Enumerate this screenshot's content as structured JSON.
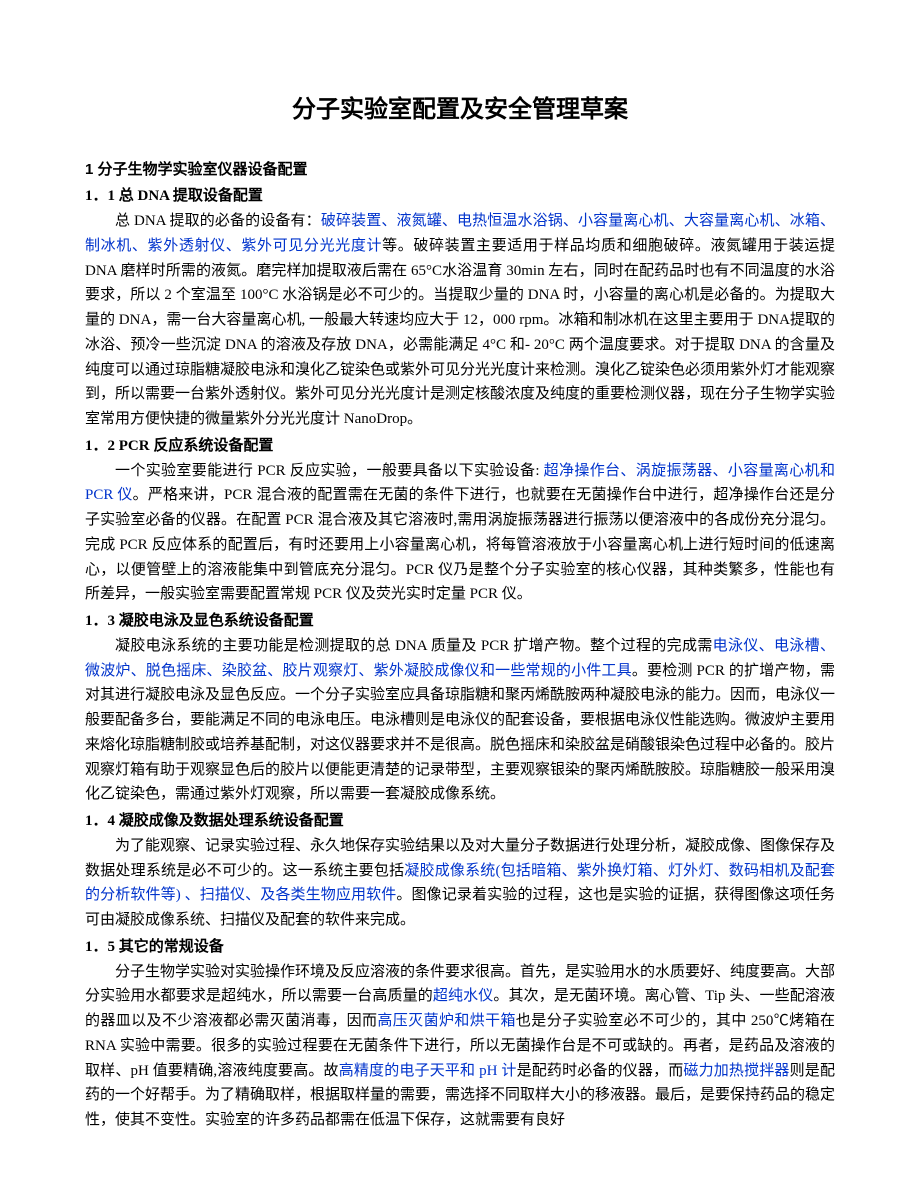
{
  "document": {
    "title": "分子实验室配置及安全管理草案",
    "text_color": "#000000",
    "highlight_color": "#0033cc",
    "background_color": "#ffffff",
    "title_fontsize": 24,
    "body_fontsize": 15,
    "sections": [
      {
        "header": "1 分子生物学实验室仪器设备配置",
        "subsections": [
          {
            "header": "1．1 总 DNA 提取设备配置",
            "runs": [
              {
                "text": "总 DNA 提取的必备的设备有："
              },
              {
                "text": "破碎装置、液氮罐、电热恒温水浴锅、小容量离心机、大容量离心机、冰箱、制冰机、紫外透射仪、紫外可见分光光度计",
                "hl": true
              },
              {
                "text": "等。破碎装置主要适用于样品均质和细胞破碎。液氮罐用于装运提 DNA 磨样时所需的液氮。磨完样加提取液后需在 65°C水浴温育 30min 左右，同时在配药品时也有不同温度的水浴要求，所以 2 个室温至 100°C 水浴锅是必不可少的。当提取少量的 DNA 时，小容量的离心机是必备的。为提取大量的 DNA，需一台大容量离心机, 一般最大转速均应大于 12，000 rpm。冰箱和制冰机在这里主要用于 DNA提取的冰浴、预冷一些沉淀 DNA 的溶液及存放 DNA，必需能满足 4°C 和- 20°C 两个温度要求。对于提取 DNA 的含量及纯度可以通过琼脂糖凝胶电泳和溴化乙锭染色或紫外可见分光光度计来检测。溴化乙锭染色必须用紫外灯才能观察到，所以需要一台紫外透射仪。紫外可见分光光度计是测定核酸浓度及纯度的重要检测仪器，现在分子生物学实验室常用方便快捷的微量紫外分光光度计 NanoDrop。"
              }
            ]
          },
          {
            "header": "1．2 PCR 反应系统设备配置",
            "runs": [
              {
                "text": "一个实验室要能进行 PCR 反应实验，一般要具备以下实验设备: "
              },
              {
                "text": "超净操作台、涡旋振荡器、小容量离心机和 PCR 仪",
                "hl": true
              },
              {
                "text": "。严格来讲，PCR 混合液的配置需在无菌的条件下进行，也就要在无菌操作台中进行，超净操作台还是分子实验室必备的仪器。在配置 PCR 混合液及其它溶液时,需用涡旋振荡器进行振荡以便溶液中的各成份充分混匀。完成 PCR 反应体系的配置后，有时还要用上小容量离心机，将每管溶液放于小容量离心机上进行短时间的低速离心，以便管壁上的溶液能集中到管底充分混匀。PCR 仪乃是整个分子实验室的核心仪器，其种类繁多，性能也有所差异，一般实验室需要配置常规 PCR 仪及荧光实时定量 PCR 仪。"
              }
            ]
          },
          {
            "header": "1．3 凝胶电泳及显色系统设备配置",
            "runs": [
              {
                "text": "凝胶电泳系统的主要功能是检测提取的总 DNA 质量及 PCR 扩增产物。整个过程的完成需"
              },
              {
                "text": "电泳仪、电泳槽、微波炉、脱色摇床、染胶盆、胶片观察灯、紫外凝胶成像仪和一些常规的小件工具",
                "hl": true
              },
              {
                "text": "。要检测 PCR 的扩增产物，需对其进行凝胶电泳及显色反应。一个分子实验室应具备琼脂糖和聚丙烯酰胺两种凝胶电泳的能力。因而，电泳仪一般要配备多台，要能满足不同的电泳电压。电泳槽则是电泳仪的配套设备，要根据电泳仪性能选购。微波炉主要用来熔化琼脂糖制胶或培养基配制，对这仪器要求并不是很高。脱色摇床和染胶盆是硝酸银染色过程中必备的。胶片观察灯箱有助于观察显色后的胶片以便能更清楚的记录带型，主要观察银染的聚丙烯酰胺胶。琼脂糖胶一般采用溴化乙锭染色，需通过紫外灯观察，所以需要一套凝胶成像系统。"
              }
            ]
          },
          {
            "header": "1．4 凝胶成像及数据处理系统设备配置",
            "runs": [
              {
                "text": "为了能观察、记录实验过程、永久地保存实验结果以及对大量分子数据进行处理分析，凝胶成像、图像保存及数据处理系统是必不可少的。这一系统主要包括"
              },
              {
                "text": "凝胶成像系统(包括暗箱、紫外换灯箱、灯外灯、数码相机及配套的分析软件等) 、扫描仪、及各类生物应用软件",
                "hl": true
              },
              {
                "text": "。图像记录着实验的过程，这也是实验的证据，获得图像这项任务可由凝胶成像系统、扫描仪及配套的软件来完成。"
              }
            ]
          },
          {
            "header": "1．5 其它的常规设备",
            "runs": [
              {
                "text": "分子生物学实验对实验操作环境及反应溶液的条件要求很高。首先，是实验用水的水质要好、纯度要高。大部分实验用水都要求是超纯水，所以需要一台高质量的"
              },
              {
                "text": "超纯水仪",
                "hl": true
              },
              {
                "text": "。其次，是无菌环境。离心管、Tip 头、一些配溶液的器皿以及不少溶液都必需灭菌消毒，因而"
              },
              {
                "text": "高压灭菌炉和烘干箱",
                "hl": true
              },
              {
                "text": "也是分子实验室必不可少的，其中 250℃烤箱在 RNA 实验中需要。很多的实验过程要在无菌条件下进行，所以无菌操作台是不可或缺的。再者，是药品及溶液的取样、pH 值要精确,溶液纯度要高。故"
              },
              {
                "text": "高精度的电子天平和 pH 计",
                "hl": true
              },
              {
                "text": "是配药时必备的仪器，而"
              },
              {
                "text": "磁力加热搅拌器",
                "hl": true
              },
              {
                "text": "则是配药的一个好帮手。为了精确取样，根据取样量的需要，需选择不同取样大小的移液器。最后，是要保持药品的稳定性，使其不变性。实验室的许多药品都需在低温下保存，这就需要有良好"
              }
            ]
          }
        ]
      }
    ]
  }
}
